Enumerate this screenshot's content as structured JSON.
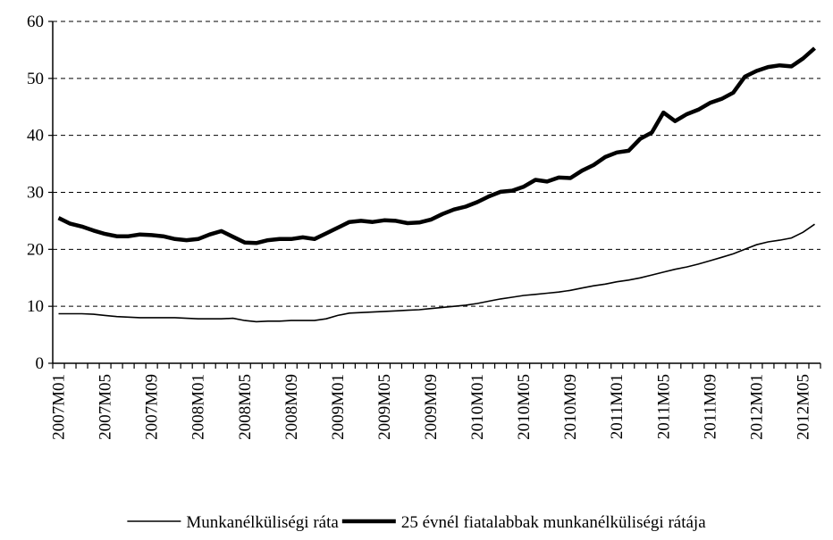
{
  "chart_data": {
    "type": "line",
    "categories": [
      "2007M01",
      null,
      null,
      null,
      "2007M05",
      null,
      null,
      null,
      "2007M09",
      null,
      null,
      null,
      "2008M01",
      null,
      null,
      null,
      "2008M05",
      null,
      null,
      null,
      "2008M09",
      null,
      null,
      null,
      "2009M01",
      null,
      null,
      null,
      "2009M05",
      null,
      null,
      null,
      "2009M09",
      null,
      null,
      null,
      "2010M01",
      null,
      null,
      null,
      "2010M05",
      null,
      null,
      null,
      "2010M09",
      null,
      null,
      null,
      "2011M01",
      null,
      null,
      null,
      "2011M05",
      null,
      null,
      null,
      "2011M09",
      null,
      null,
      null,
      "2012M01",
      null,
      null,
      null,
      "2012M05",
      null
    ],
    "series": [
      {
        "name": "Munkanélküliségi ráta",
        "color": "#000000",
        "values": [
          8.7,
          8.7,
          8.7,
          8.6,
          8.4,
          8.2,
          8.1,
          8.0,
          8.0,
          8.0,
          8.0,
          7.9,
          7.8,
          7.8,
          7.8,
          7.9,
          7.5,
          7.3,
          7.4,
          7.4,
          7.5,
          7.5,
          7.5,
          7.8,
          8.4,
          8.8,
          8.9,
          9.0,
          9.1,
          9.2,
          9.3,
          9.4,
          9.6,
          9.8,
          10.0,
          10.2,
          10.5,
          10.9,
          11.3,
          11.6,
          11.9,
          12.1,
          12.3,
          12.5,
          12.8,
          13.2,
          13.6,
          13.9,
          14.3,
          14.6,
          15.0,
          15.5,
          16.0,
          16.5,
          16.9,
          17.4,
          18.0,
          18.6,
          19.2,
          20.0,
          20.8,
          21.3,
          21.6,
          22.0,
          23.0,
          24.4
        ]
      },
      {
        "name": "25 évnél fiatalabbak munkanélküliségi rátája",
        "color": "#000000",
        "values": [
          25.5,
          24.5,
          24.0,
          23.3,
          22.7,
          22.3,
          22.3,
          22.6,
          22.5,
          22.3,
          21.8,
          21.6,
          21.8,
          22.6,
          23.2,
          22.2,
          21.2,
          21.1,
          21.6,
          21.8,
          21.8,
          22.1,
          21.8,
          22.8,
          23.8,
          24.8,
          25.0,
          24.8,
          25.1,
          25.0,
          24.6,
          24.7,
          25.2,
          26.2,
          27.0,
          27.5,
          28.3,
          29.3,
          30.1,
          30.3,
          31.0,
          32.2,
          31.9,
          32.6,
          32.5,
          33.8,
          34.8,
          36.2,
          37.0,
          37.3,
          39.4,
          40.5,
          44.0,
          42.5,
          43.7,
          44.5,
          45.7,
          46.4,
          47.5,
          50.3,
          51.3,
          52.0,
          52.3,
          52.1,
          53.5,
          55.3
        ]
      }
    ],
    "ylim": [
      0,
      60
    ],
    "yticks": [
      0,
      10,
      20,
      30,
      40,
      50,
      60
    ],
    "grid": true,
    "legend": "bottom"
  }
}
